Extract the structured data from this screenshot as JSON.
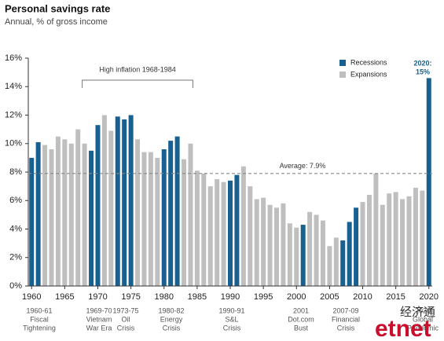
{
  "chart_data": {
    "type": "bar",
    "title": "Personal savings rate",
    "subtitle": "Annual, % of gross income",
    "categories": [
      "1960",
      null,
      null,
      null,
      null,
      "1965",
      null,
      null,
      null,
      null,
      "1970",
      null,
      null,
      null,
      null,
      "1975",
      null,
      null,
      null,
      null,
      "1980",
      null,
      null,
      null,
      null,
      "1985",
      null,
      null,
      null,
      null,
      "1990",
      null,
      null,
      null,
      null,
      "1995",
      null,
      null,
      null,
      null,
      "2000",
      null,
      null,
      null,
      null,
      "2005",
      null,
      null,
      null,
      null,
      "2010",
      null,
      null,
      null,
      null,
      "2015",
      null,
      null,
      null,
      null,
      "2020"
    ],
    "series": [
      {
        "name": "Recessions",
        "color": "#17608f",
        "values": [
          9.0,
          10.1,
          null,
          null,
          null,
          null,
          null,
          null,
          null,
          9.5,
          11.3,
          null,
          null,
          11.9,
          11.7,
          12.0,
          null,
          null,
          null,
          null,
          9.6,
          10.2,
          10.5,
          null,
          null,
          null,
          null,
          null,
          null,
          null,
          7.4,
          7.8,
          null,
          null,
          null,
          null,
          null,
          null,
          null,
          null,
          null,
          4.3,
          null,
          null,
          null,
          null,
          null,
          3.2,
          4.5,
          5.5,
          null,
          null,
          null,
          null,
          null,
          null,
          null,
          null,
          null,
          null,
          14.6
        ]
      },
      {
        "name": "Expansions",
        "color": "#bfbfbf",
        "values": [
          null,
          null,
          9.9,
          9.6,
          10.5,
          10.3,
          10.0,
          11.0,
          10.0,
          null,
          null,
          12.0,
          10.9,
          null,
          null,
          null,
          10.3,
          9.4,
          9.4,
          9.0,
          null,
          null,
          null,
          8.9,
          10.0,
          8.1,
          7.9,
          7.0,
          7.5,
          7.3,
          null,
          null,
          8.4,
          7.0,
          6.1,
          6.2,
          5.7,
          5.5,
          5.8,
          4.4,
          4.1,
          null,
          5.2,
          5.0,
          4.6,
          2.8,
          3.4,
          null,
          null,
          null,
          5.9,
          6.4,
          7.9,
          5.7,
          6.5,
          6.6,
          6.1,
          6.3,
          6.9,
          6.7,
          null
        ]
      }
    ],
    "ylim": [
      0,
      16
    ],
    "yticks": [
      {
        "value": 0,
        "label": "0%"
      },
      {
        "value": 2,
        "label": "2%"
      },
      {
        "value": 4,
        "label": "4%"
      },
      {
        "value": 6,
        "label": "6%"
      },
      {
        "value": 8,
        "label": "8%"
      },
      {
        "value": 10,
        "label": "10%"
      },
      {
        "value": 12,
        "label": "12%"
      },
      {
        "value": 14,
        "label": "14%"
      },
      {
        "value": 16,
        "label": "16%"
      }
    ],
    "legend": "top-right",
    "average": 7.9,
    "average_label": "Average: 7.9%",
    "inflation_label": "High inflation 1968-1984",
    "top_label": [
      "2020:",
      "15%"
    ],
    "recession_labels": [
      [
        "1960-61",
        "Fiscal",
        "Tightening"
      ],
      [
        "1969-70",
        "Vietnam",
        "War Era"
      ],
      [
        "1973-75",
        "Oil",
        "Crisis"
      ],
      [
        "1980-82",
        "Energy",
        "Crisis"
      ],
      [
        "1990-91",
        "S&L",
        "Crisis"
      ],
      [
        "2001",
        "Dot.com",
        "Bust"
      ],
      [
        "2007-09",
        "Financial",
        "Crisis"
      ],
      [
        "2020",
        "Global",
        "Pandemic"
      ]
    ],
    "watermark": [
      "经济通",
      "etnet"
    ]
  }
}
